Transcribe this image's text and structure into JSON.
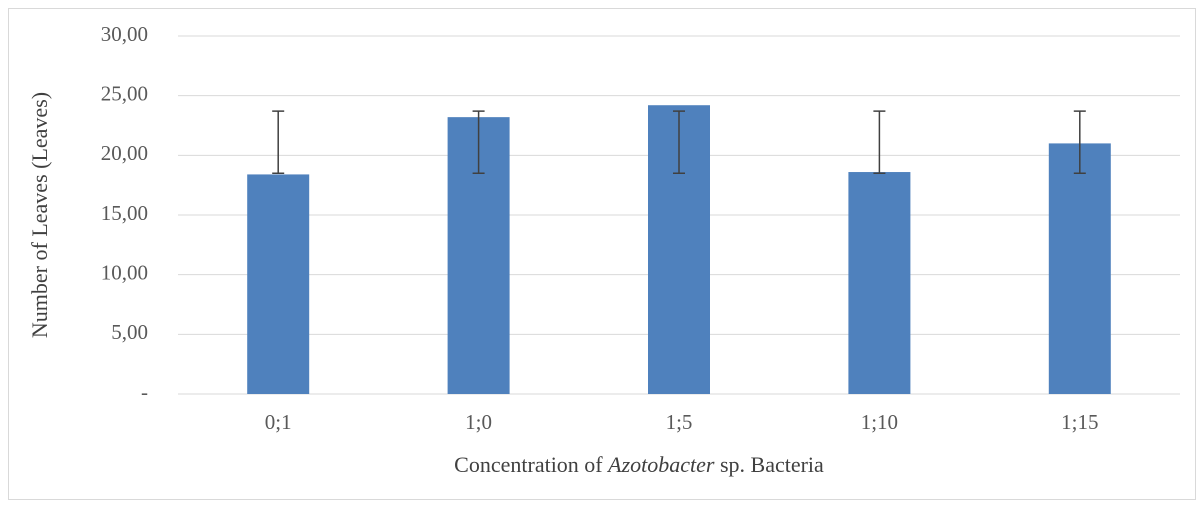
{
  "chart_data": {
    "type": "bar",
    "y_label": "Number of Leaves (Leaves)",
    "x_label": [
      "Concentration of ",
      "Azotobacter",
      " sp. Bacteria"
    ],
    "categories": [
      "0;1",
      "1;0",
      "1;5",
      "1;10",
      "1;15"
    ],
    "values": [
      18.4,
      23.2,
      24.2,
      18.6,
      21.0
    ],
    "error_low": [
      18.5,
      18.5,
      18.5,
      18.5,
      18.5
    ],
    "error_high": [
      23.7,
      23.7,
      23.7,
      23.7,
      23.7
    ],
    "color": "#4f81bd",
    "error_color": "#404040",
    "ylim": [
      0,
      30
    ],
    "yticks": [
      {
        "value": 0,
        "label": "-"
      },
      {
        "value": 5,
        "label": "5,00"
      },
      {
        "value": 10,
        "label": "10,00"
      },
      {
        "value": 15,
        "label": "15,00"
      },
      {
        "value": 20,
        "label": "20,00"
      },
      {
        "value": 25,
        "label": "25,00"
      },
      {
        "value": 30,
        "label": "30,00"
      }
    ],
    "grid": true
  }
}
